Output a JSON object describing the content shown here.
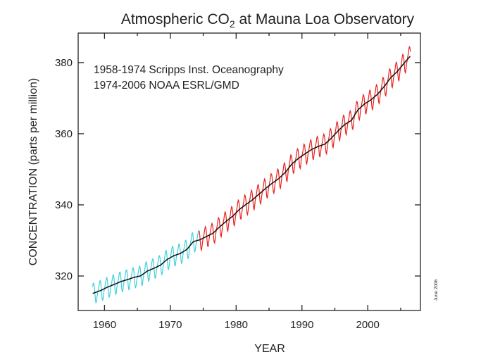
{
  "chart_data": {
    "type": "line",
    "title": "Atmospheric CO",
    "title_subscript": "2",
    "title_suffix": " at Mauna Loa Observatory",
    "xlabel": "YEAR",
    "ylabel": "CONCENTRATION (parts per million)",
    "xlim": [
      1956,
      2008
    ],
    "ylim": [
      310.3,
      388.3
    ],
    "xticks": [
      1960,
      1970,
      1980,
      1990,
      2000
    ],
    "yticks": [
      320,
      340,
      360,
      380
    ],
    "grid": false,
    "annotations": [
      "1958-1974 Scripps Inst. Oceanography",
      "1974-2006 NOAA ESRL/GMD"
    ],
    "side_note": "June 2006",
    "colors": {
      "scripps": "#3fd0dc",
      "noaa": "#e8201c",
      "trend": "#111111"
    },
    "annual_mean": {
      "years": [
        1958,
        1959,
        1960,
        1961,
        1962,
        1963,
        1964,
        1965,
        1966,
        1967,
        1968,
        1969,
        1970,
        1971,
        1972,
        1973,
        1974,
        1975,
        1976,
        1977,
        1978,
        1979,
        1980,
        1981,
        1982,
        1983,
        1984,
        1985,
        1986,
        1987,
        1988,
        1989,
        1990,
        1991,
        1992,
        1993,
        1994,
        1995,
        1996,
        1997,
        1998,
        1999,
        2000,
        2001,
        2002,
        2003,
        2004,
        2005,
        2006
      ],
      "ppm": [
        315.3,
        315.98,
        316.91,
        317.64,
        318.45,
        318.99,
        319.62,
        320.04,
        321.38,
        322.16,
        323.04,
        324.62,
        325.68,
        326.32,
        327.45,
        329.68,
        330.18,
        331.11,
        332.04,
        333.83,
        335.4,
        336.84,
        338.75,
        340.11,
        341.45,
        343.05,
        344.65,
        346.12,
        347.42,
        349.19,
        351.57,
        353.12,
        354.39,
        355.61,
        356.45,
        357.1,
        358.83,
        360.82,
        362.61,
        363.73,
        366.7,
        368.38,
        369.55,
        371.14,
        373.28,
        375.8,
        377.52,
        379.8,
        381.9
      ]
    },
    "seasonal_cycle_ppm": [
      0.0,
      0.7,
      1.4,
      2.6,
      3.0,
      2.4,
      0.9,
      -1.3,
      -3.0,
      -3.2,
      -1.9,
      -0.7
    ],
    "series": [
      {
        "name": "1958-1974 Scripps Inst. Oceanography",
        "start": 1958.2,
        "end": 1974.4
      },
      {
        "name": "1974-2006 NOAA ESRL/GMD",
        "start": 1974.4,
        "end": 2006.5
      }
    ]
  }
}
